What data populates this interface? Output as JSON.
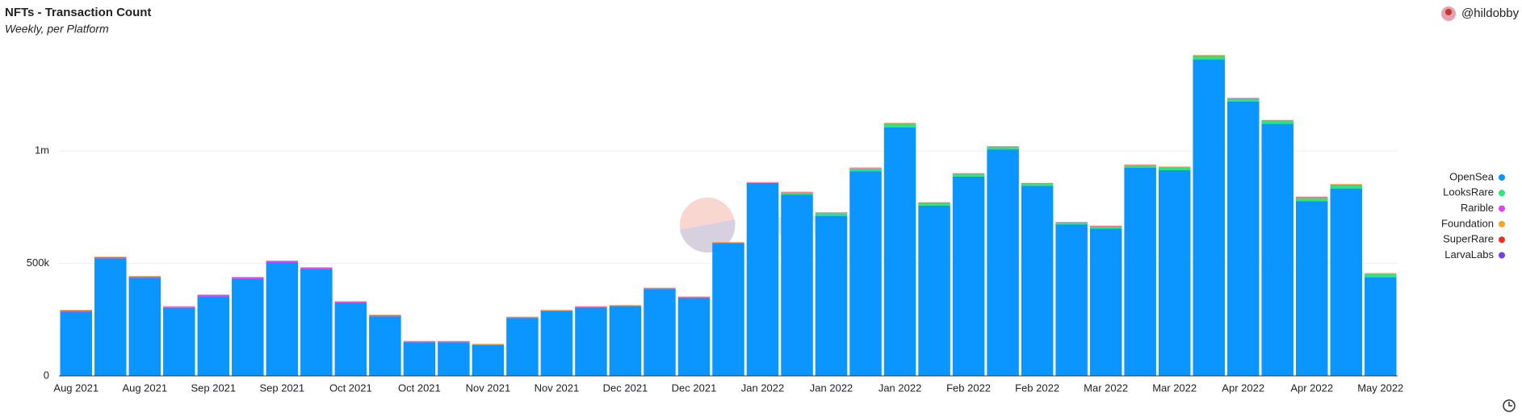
{
  "chart_data": {
    "type": "bar",
    "stacked": true,
    "title": "NFTs - Transaction Count",
    "subtitle": "Weekly, per Platform",
    "author": "@hildobby",
    "watermark": "Dune",
    "categories": [
      "Aug 2021",
      null,
      "Aug 2021",
      null,
      "Sep 2021",
      null,
      "Sep 2021",
      null,
      "Oct 2021",
      null,
      "Oct 2021",
      null,
      "Nov 2021",
      null,
      "Nov 2021",
      null,
      "Dec 2021",
      null,
      "Dec 2021",
      null,
      "Jan 2022",
      null,
      "Jan 2022",
      null,
      "Jan 2022",
      null,
      "Feb 2022",
      null,
      "Feb 2022",
      null,
      "Mar 2022",
      null,
      "Mar 2022",
      null,
      "Apr 2022",
      null,
      "Apr 2022",
      null,
      "May 2022"
    ],
    "series": [
      {
        "name": "OpenSea",
        "color": "#0a95ff",
        "values": [
          285600,
          522600,
          436600,
          302600,
          354600,
          432600,
          505600,
          475600,
          324600,
          264600,
          149600,
          149600,
          136600,
          257600,
          287600,
          304600,
          309600,
          386600,
          347600,
          589600,
          857600,
          806600,
          711600,
          910600,
          1105600,
          757600,
          886600,
          1007600,
          845600,
          672600,
          655600,
          925600,
          914600,
          1407600,
          1220600,
          1121600,
          777600,
          833600,
          437600
        ]
      },
      {
        "name": "LooksRare",
        "color": "#2de37c",
        "values": [
          0,
          0,
          0,
          0,
          0,
          0,
          0,
          0,
          0,
          0,
          0,
          0,
          0,
          0,
          0,
          0,
          0,
          0,
          0,
          0,
          0,
          8000,
          12000,
          12000,
          15000,
          10000,
          10000,
          10000,
          8000,
          8000,
          8000,
          10000,
          12000,
          15000,
          12000,
          12000,
          15000,
          15000,
          15000
        ]
      },
      {
        "name": "Rarible",
        "color": "#e045e6",
        "values": [
          5000,
          5000,
          5000,
          5000,
          5000,
          5000,
          5000,
          5000,
          5000,
          5000,
          3000,
          3000,
          3000,
          3000,
          3000,
          3000,
          3000,
          3000,
          3000,
          3000,
          2000,
          2000,
          2000,
          2000,
          2000,
          2000,
          2000,
          2000,
          2000,
          2000,
          2000,
          2000,
          2000,
          2000,
          2000,
          2000,
          2000,
          2000,
          2000
        ]
      },
      {
        "name": "Foundation",
        "color": "#f5a623",
        "values": [
          2000,
          2000,
          2000,
          2000,
          2000,
          2000,
          2000,
          2000,
          2000,
          2000,
          2000,
          2000,
          2000,
          2000,
          2000,
          2000,
          2000,
          2000,
          2000,
          2000,
          2000,
          2000,
          2000,
          2000,
          2000,
          2000,
          2000,
          2000,
          2000,
          2000,
          2000,
          2000,
          2000,
          2000,
          2000,
          2000,
          2000,
          2000,
          2000
        ]
      },
      {
        "name": "SuperRare",
        "color": "#ef2e22",
        "values": [
          300,
          300,
          300,
          300,
          300,
          300,
          300,
          300,
          300,
          300,
          300,
          300,
          300,
          300,
          300,
          300,
          300,
          300,
          300,
          300,
          300,
          300,
          300,
          300,
          300,
          300,
          300,
          300,
          300,
          300,
          300,
          300,
          300,
          300,
          300,
          300,
          300,
          300,
          300
        ]
      },
      {
        "name": "LarvaLabs",
        "color": "#7a3fe6",
        "values": [
          100,
          100,
          100,
          100,
          100,
          100,
          100,
          100,
          100,
          100,
          100,
          100,
          100,
          100,
          100,
          100,
          100,
          100,
          100,
          100,
          100,
          100,
          100,
          100,
          100,
          100,
          100,
          100,
          100,
          100,
          100,
          100,
          100,
          100,
          100,
          100,
          100,
          100,
          100
        ]
      }
    ],
    "ylim": [
      0,
      1460000
    ],
    "yticks": [
      0,
      {
        "value": 500000,
        "label": "500k"
      },
      {
        "value": 1000000,
        "label": "1m"
      }
    ],
    "grid": true,
    "legend": "right"
  }
}
